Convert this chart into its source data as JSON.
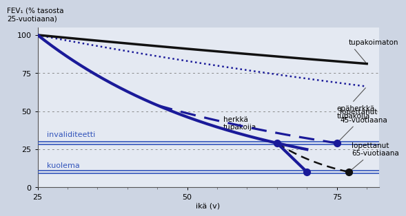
{
  "background_color": "#cdd5e3",
  "plot_bg_color": "#e4e9f2",
  "xlabel": "ikä (v)",
  "ylabel": "FEV₁ (% tasosta\n25-vuotiaana)",
  "xlim": [
    25,
    82
  ],
  "ylim": [
    0,
    105
  ],
  "xticks": [
    25,
    50,
    75
  ],
  "yticks": [
    0,
    25,
    50,
    75,
    100
  ],
  "invaliditeetti_y": 29,
  "kuolema_y": 10,
  "invaliditeetti_label": "invaliditeetti",
  "kuolema_label": "kuolema",
  "tupakoimaton_color": "#111111",
  "epaherkkä_color": "#1a1a99",
  "herkka_color": "#1a1a99",
  "dashed45_color": "#1a1a99",
  "dashed65_color": "#111111",
  "horiz_color": "#3355bb"
}
